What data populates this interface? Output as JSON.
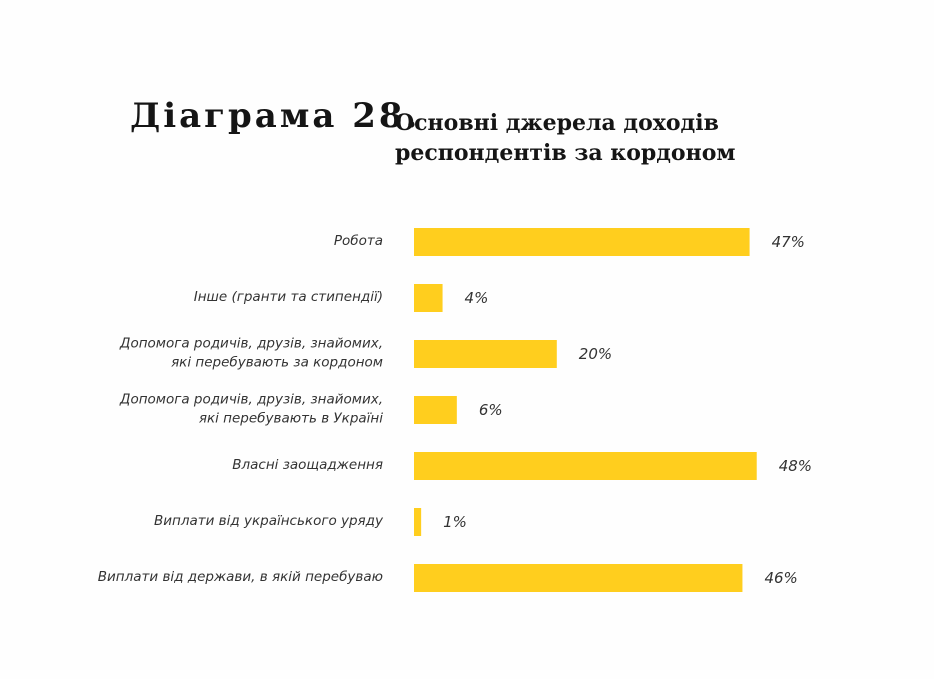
{
  "header": {
    "number": "Діаграма 28.",
    "title": "Основні джерела доходів\nреспондентів за кордоном"
  },
  "colors": {
    "bar": "#FFCE1E",
    "text": "#333333"
  },
  "chart_data": {
    "type": "bar",
    "orientation": "horizontal",
    "categories": [
      "Робота",
      "Інше (гранти та стипендії)",
      "Допомога родичів, друзів, знайомих,\nякі перебувають за кордоном",
      "Допомога родичів, друзів, знайомих,\nякі перебувають в Україні",
      "Власні заощадження",
      "Виплати від українського уряду",
      "Виплати від держави, в якій перебуваю"
    ],
    "values": [
      47,
      4,
      20,
      6,
      48,
      1,
      46
    ],
    "value_labels": [
      "47%",
      "4%",
      "20%",
      "6%",
      "48%",
      "1%",
      "46%"
    ],
    "title": "Основні джерела доходів респондентів за кордоном",
    "xlabel": "",
    "ylabel": "",
    "xlim": [
      0,
      100
    ],
    "unit": "%",
    "grid": false,
    "legend": "none"
  }
}
